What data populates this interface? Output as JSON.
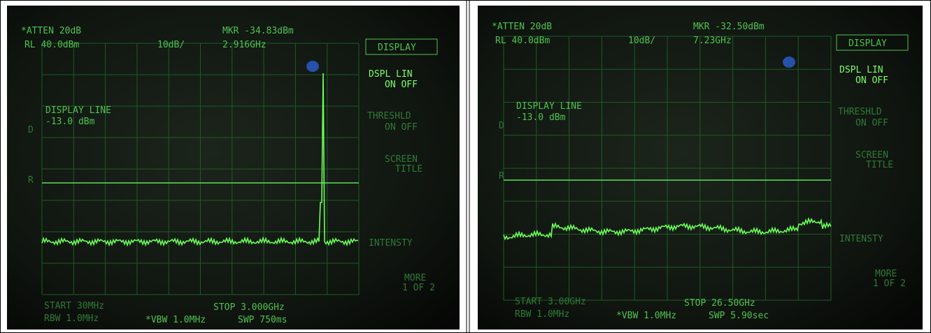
{
  "panels": [
    {
      "atten": "*ATTEN 20dB",
      "ref_level": "RL 40.0dBm",
      "scale": "10dB/",
      "marker": "MKR -34.83dBm",
      "marker_freq": "2.916GHz",
      "menu_title": "DISPLAY",
      "dspl_lin": "DSPL LIN",
      "dspl_on_off": "ON OFF",
      "display_line": "DISPLAY LINE",
      "display_line_level": "-13.0 dBm",
      "threshold": "THRESHLD",
      "threshold_on_off": "ON OFF",
      "screen": "SCREEN",
      "screen_title": "TITLE",
      "intensity": "INTENSTY",
      "more": "MORE",
      "more_page": "1 OF 2",
      "d_mark": "D",
      "r_mark": "R",
      "start": "START 30MHz",
      "stop": "STOP 3.000GHz",
      "rbw": "RBW 1.0MHz",
      "vbw": "*VBW 1.0MHz",
      "sweep": "SWP 750ms"
    },
    {
      "atten": "*ATTEN 20dB",
      "ref_level": "RL 40.0dBm",
      "scale": "10dB/",
      "marker": "MKR -32.50dBm",
      "marker_freq": "7.23GHz",
      "menu_title": "DISPLAY",
      "dspl_lin": "DSPL LIN",
      "dspl_on_off": "ON OFF",
      "display_line": "DISPLAY LINE",
      "display_line_level": "-13.0 dBm",
      "threshold": "THRESHLD",
      "threshold_on_off": "ON OFF",
      "screen": "SCREEN",
      "screen_title": "TITLE",
      "intensity": "INTENSTY",
      "more": "MORE",
      "more_page": "1 OF 2",
      "d_mark": "D",
      "r_mark": "R",
      "start": "START 3.00GHz",
      "stop": "STOP 26.50GHz",
      "rbw": "RBW 1.0MHz",
      "vbw": "*VBW 1.0MHz",
      "sweep": "SWP 5.90sec"
    }
  ]
}
